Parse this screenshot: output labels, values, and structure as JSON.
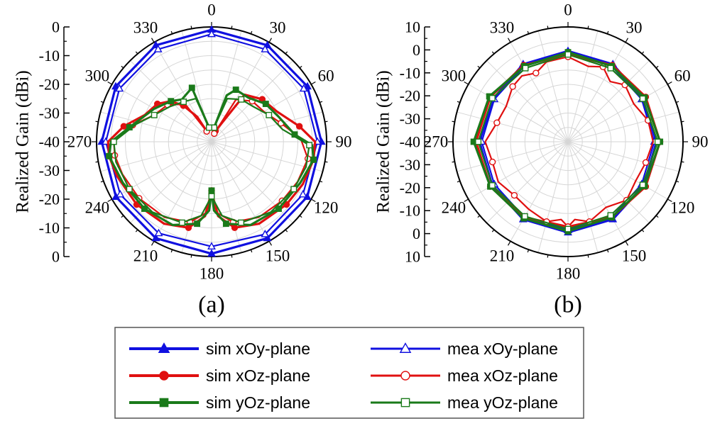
{
  "chart_data": [
    {
      "type": "polar",
      "panel_label": "(a)",
      "ylabel": "Realized Gain (dBi)",
      "rlim": [
        -40,
        0
      ],
      "radial_ticks": [
        "0",
        "-10",
        "-20",
        "-30",
        "-40",
        "-30",
        "-20",
        "-10",
        "0"
      ],
      "angle_ticks": [
        "0",
        "30",
        "60",
        "90",
        "120",
        "150",
        "180",
        "210",
        "240",
        "270",
        "300",
        "330"
      ],
      "series": [
        {
          "name": "sim xOy-plane",
          "color": "#1010e0",
          "marker": "triangle",
          "filled": true,
          "angles": [
            0,
            30,
            60,
            90,
            120,
            150,
            180,
            210,
            240,
            270,
            300,
            330,
            360
          ],
          "values": [
            -1,
            -1.2,
            -1.5,
            -1.8,
            -1.6,
            -1.2,
            -1,
            -1.2,
            -1.6,
            -1.8,
            -1.5,
            -1.2,
            -1
          ]
        },
        {
          "name": "mea xOy-plane",
          "color": "#1010e0",
          "marker": "triangle",
          "filled": false,
          "angles": [
            0,
            30,
            60,
            90,
            120,
            150,
            180,
            210,
            240,
            270,
            300,
            330,
            360
          ],
          "values": [
            -2.5,
            -2.8,
            -3,
            -3.2,
            -3.3,
            -2.8,
            -3.5,
            -3.2,
            -3.3,
            -3.2,
            -3,
            -2.8,
            -2.5
          ]
        },
        {
          "name": "sim xOz-plane",
          "color": "#e01010",
          "marker": "circle",
          "filled": true,
          "angles": [
            20,
            35,
            50,
            65,
            80,
            90,
            100,
            115,
            130,
            150,
            165,
            175,
            180,
            185,
            195,
            210,
            230,
            250,
            262,
            270,
            280,
            292,
            305,
            315,
            322,
            330,
            335
          ],
          "values": [
            -36,
            -20,
            -17,
            -15,
            -9,
            -4,
            -4,
            -5,
            -6,
            -7,
            -9,
            -14,
            -22,
            -14,
            -9,
            -7,
            -6,
            -5,
            -4,
            -4,
            -9,
            -15,
            -17,
            -20,
            -24,
            -30,
            -36
          ]
        },
        {
          "name": "mea xOz-plane",
          "color": "#e01010",
          "marker": "circle",
          "filled": false,
          "angles": [
            18,
            30,
            45,
            60,
            75,
            88,
            100,
            115,
            130,
            148,
            165,
            175,
            180,
            185,
            195,
            212,
            232,
            250,
            262,
            270,
            282,
            295,
            310,
            325,
            335
          ],
          "values": [
            -37,
            -23,
            -20,
            -19,
            -15,
            -9,
            -6,
            -7,
            -8,
            -9,
            -11,
            -15,
            -23,
            -15,
            -11,
            -9,
            -8,
            -7,
            -6,
            -6,
            -12,
            -18,
            -20,
            -24,
            -36
          ]
        },
        {
          "name": "sim yOz-plane",
          "color": "#1a7a1a",
          "marker": "square",
          "filled": true,
          "angles": [
            10,
            18,
            25,
            40,
            55,
            70,
            85,
            92,
            100,
            115,
            135,
            155,
            170,
            178,
            180,
            182,
            190,
            205,
            225,
            245,
            262,
            270,
            280,
            300,
            315,
            325,
            340,
            350
          ],
          "values": [
            -35,
            -23,
            -20,
            -20,
            -17,
            -15,
            -11,
            -5,
            -4,
            -6,
            -7,
            -8,
            -11,
            -16,
            -23,
            -16,
            -11,
            -8,
            -7,
            -6,
            -4,
            -5,
            -11,
            -17,
            -20,
            -22,
            -20,
            -35
          ]
        },
        {
          "name": "mea yOz-plane",
          "color": "#1a7a1a",
          "marker": "square",
          "filled": false,
          "angles": [
            10,
            20,
            35,
            50,
            65,
            80,
            92,
            105,
            120,
            140,
            160,
            172,
            180,
            188,
            200,
            220,
            240,
            258,
            270,
            283,
            295,
            310,
            325,
            340,
            350
          ],
          "values": [
            -35,
            -24,
            -22,
            -21,
            -18,
            -15,
            -6,
            -6,
            -7,
            -8,
            -10,
            -14,
            -21,
            -14,
            -10,
            -8,
            -7,
            -6,
            -6,
            -13,
            -18,
            -21,
            -23,
            -24,
            -35
          ]
        }
      ]
    },
    {
      "type": "polar",
      "panel_label": "(b)",
      "ylabel": "Realized Gain (dBi)",
      "rlim": [
        -40,
        10
      ],
      "radial_ticks": [
        "10",
        "0",
        "-10",
        "-20",
        "-30",
        "-40",
        "-30",
        "-20",
        "-10",
        "0",
        "10"
      ],
      "angle_ticks": [
        "0",
        "30",
        "60",
        "90",
        "120",
        "150",
        "180",
        "210",
        "240",
        "270",
        "300",
        "330"
      ],
      "series": [
        {
          "name": "sim xOy-plane",
          "color": "#1010e0",
          "marker": "triangle",
          "filled": true,
          "angles": [
            0,
            30,
            60,
            90,
            120,
            150,
            180,
            210,
            240,
            270,
            300,
            330,
            360
          ],
          "values": [
            -0.5,
            -1,
            -2.5,
            -1.5,
            -2,
            -1,
            -0.5,
            -1,
            -2,
            -1.5,
            -2.5,
            -1,
            -0.5
          ]
        },
        {
          "name": "mea xOy-plane",
          "color": "#1010e0",
          "marker": "triangle",
          "filled": false,
          "angles": [
            0,
            30,
            60,
            90,
            120,
            150,
            180,
            210,
            240,
            270,
            300,
            330,
            360
          ],
          "values": [
            -1.5,
            -2,
            -3,
            -2.5,
            -3,
            -2,
            -1.5,
            -2,
            -3,
            -2.5,
            -3,
            -2,
            -1.5
          ]
        },
        {
          "name": "sim xOz-plane",
          "color": "#e01010",
          "marker": "circle",
          "filled": true,
          "angles": [
            0,
            30,
            60,
            90,
            120,
            150,
            180,
            210,
            240,
            270,
            300,
            330,
            360
          ],
          "values": [
            -2,
            -1.5,
            -1,
            0,
            -1,
            -2,
            -3,
            -2,
            -1,
            0,
            -1,
            -1.5,
            -2
          ]
        },
        {
          "name": "mea xOz-plane",
          "color": "#e01010",
          "marker": "circle",
          "filled": false,
          "angles": [
            0,
            15,
            25,
            35,
            45,
            60,
            75,
            90,
            105,
            120,
            135,
            150,
            165,
            175,
            180,
            185,
            195,
            210,
            225,
            240,
            255,
            270,
            285,
            300,
            315,
            325,
            335,
            345,
            360
          ],
          "values": [
            -3,
            -6,
            -4,
            -8,
            -5,
            -7,
            -4,
            -3,
            -5,
            -6,
            -4,
            -7,
            -4,
            -6,
            -3,
            -6,
            -4,
            -6,
            -7,
            -5,
            -6,
            -4,
            -8,
            -9,
            -6,
            -5,
            -7,
            -4,
            -3
          ]
        },
        {
          "name": "sim yOz-plane",
          "color": "#1a7a1a",
          "marker": "square",
          "filled": true,
          "angles": [
            0,
            30,
            60,
            90,
            120,
            150,
            180,
            210,
            240,
            270,
            300,
            330,
            360
          ],
          "values": [
            -1,
            -2,
            -1.5,
            0,
            -1.5,
            -2,
            -1,
            -1.5,
            -1,
            1,
            -0.5,
            -2,
            -1
          ]
        },
        {
          "name": "mea yOz-plane",
          "color": "#1a7a1a",
          "marker": "square",
          "filled": false,
          "angles": [
            0,
            30,
            60,
            90,
            120,
            150,
            180,
            210,
            240,
            270,
            300,
            330,
            360
          ],
          "values": [
            -2,
            -3,
            -2.5,
            -1,
            -2.5,
            -3,
            -2,
            -2.5,
            -2,
            -1,
            -2,
            -3,
            -2
          ]
        }
      ]
    }
  ],
  "legend": [
    {
      "label": "sim xOy-plane",
      "color": "#1010e0",
      "marker": "triangle",
      "filled": true
    },
    {
      "label": "mea xOy-plane",
      "color": "#1010e0",
      "marker": "triangle",
      "filled": false
    },
    {
      "label": "sim xOz-plane",
      "color": "#e01010",
      "marker": "circle",
      "filled": true
    },
    {
      "label": "mea xOz-plane",
      "color": "#e01010",
      "marker": "circle",
      "filled": false
    },
    {
      "label": "sim yOz-plane",
      "color": "#1a7a1a",
      "marker": "square",
      "filled": true
    },
    {
      "label": "mea yOz-plane",
      "color": "#1a7a1a",
      "marker": "square",
      "filled": false
    }
  ]
}
